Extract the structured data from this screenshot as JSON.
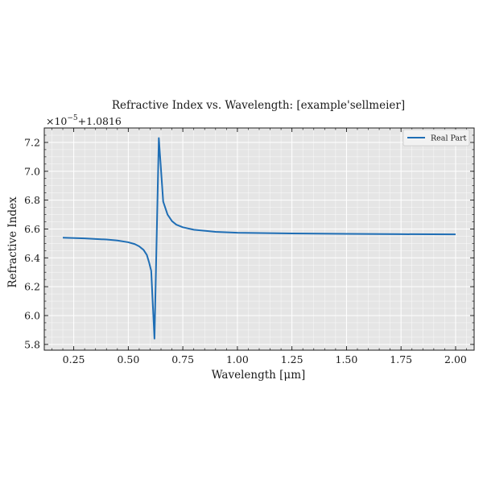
{
  "chart_data": {
    "type": "line",
    "title": "Refractive Index vs. Wavelength: [example'sellmeier]",
    "xlabel": "Wavelength [μm]",
    "ylabel": "Refractive Index",
    "offset_label_prefix": "×10",
    "offset_label_exponent": "−5",
    "offset_label_suffix": "+1.0816",
    "xlim": [
      0.115,
      2.085
    ],
    "ylim": [
      5.76,
      7.3
    ],
    "xticks": [
      0.25,
      0.5,
      0.75,
      1.0,
      1.25,
      1.5,
      1.75,
      2.0
    ],
    "xtick_labels": [
      "0.25",
      "0.50",
      "0.75",
      "1.00",
      "1.25",
      "1.50",
      "1.75",
      "2.00"
    ],
    "yticks": [
      5.8,
      6.0,
      6.2,
      6.4,
      6.6,
      6.8,
      7.0,
      7.2
    ],
    "ytick_labels": [
      "5.8",
      "6.0",
      "6.2",
      "6.4",
      "6.6",
      "6.8",
      "7.0",
      "7.2"
    ],
    "grid": true,
    "legend_position": "top-right",
    "series": [
      {
        "name": "Real Part",
        "color": "#1f6eb5",
        "x": [
          0.2,
          0.3,
          0.4,
          0.45,
          0.5,
          0.53,
          0.55,
          0.57,
          0.585,
          0.595,
          0.605,
          0.62,
          0.64,
          0.66,
          0.68,
          0.7,
          0.72,
          0.75,
          0.8,
          0.9,
          1.0,
          1.25,
          1.5,
          1.75,
          2.0
        ],
        "y": [
          6.54,
          6.535,
          6.527,
          6.52,
          6.508,
          6.495,
          6.48,
          6.455,
          6.42,
          6.37,
          6.31,
          5.84,
          7.23,
          6.79,
          6.7,
          6.655,
          6.63,
          6.612,
          6.595,
          6.58,
          6.574,
          6.569,
          6.566,
          6.564,
          6.563
        ]
      }
    ]
  }
}
